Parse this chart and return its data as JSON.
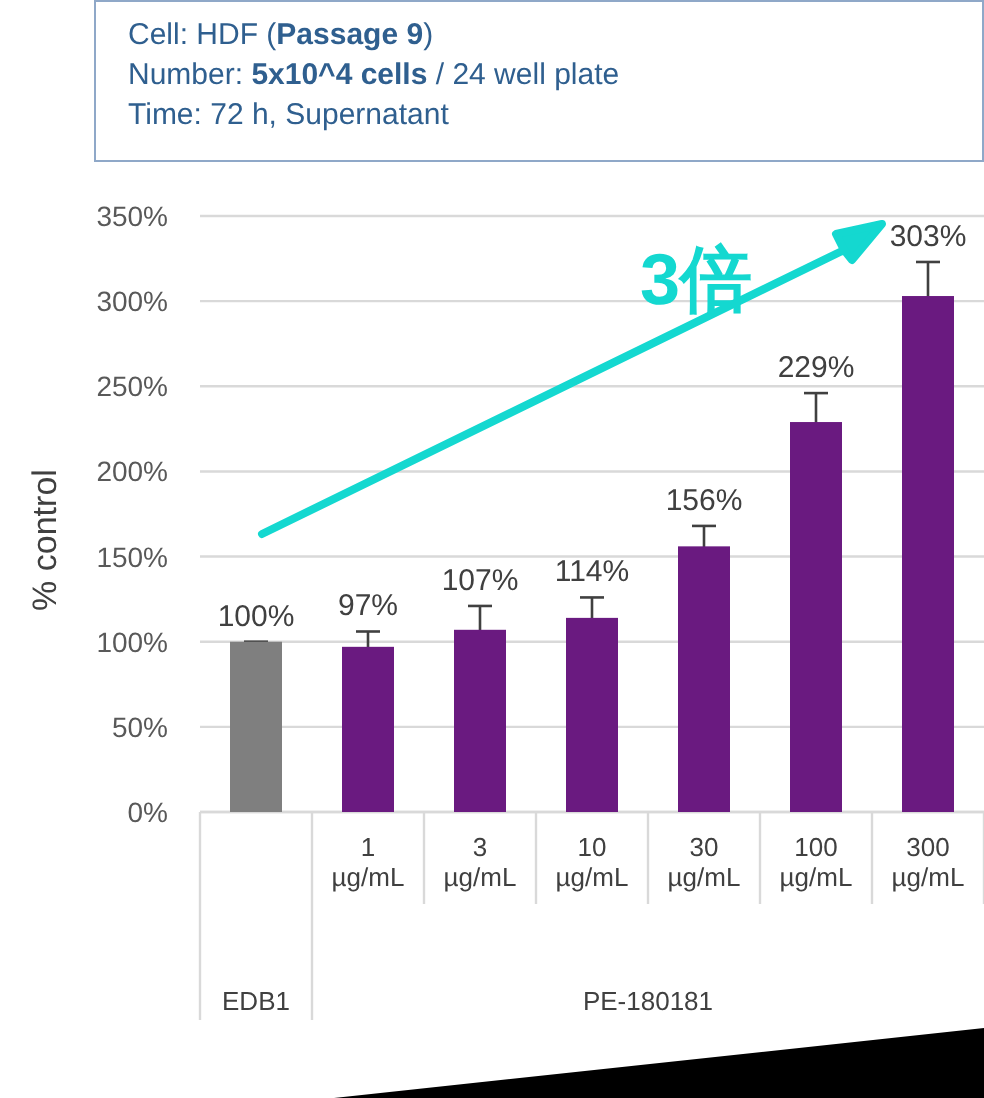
{
  "chart_data": {
    "type": "bar",
    "categories": [
      null,
      "1 µg/mL",
      "3 µg/mL",
      "10 µg/mL",
      "30 µg/mL",
      "100 µg/mL",
      "300 µg/mL"
    ],
    "values": [
      100,
      97,
      107,
      114,
      156,
      229,
      303
    ],
    "errors": [
      0,
      9,
      14,
      12,
      12,
      17,
      20
    ],
    "colors": [
      "#7f7f7f",
      "#6a1a80",
      "#6a1a80",
      "#6a1a80",
      "#6a1a80",
      "#6a1a80",
      "#6a1a80"
    ],
    "value_labels": [
      "100%",
      "97%",
      "107%",
      "114%",
      "156%",
      "229%",
      "303%"
    ],
    "ylabel": "% control",
    "ylim": [
      0,
      350
    ],
    "yticks": [
      {
        "value": 0,
        "label": "0%"
      },
      {
        "value": 50,
        "label": "50%"
      },
      {
        "value": 100,
        "label": "100%"
      },
      {
        "value": 150,
        "label": "150%"
      },
      {
        "value": 200,
        "label": "200%"
      },
      {
        "value": 250,
        "label": "250%"
      },
      {
        "value": 300,
        "label": "300%"
      },
      {
        "value": 350,
        "label": "350%"
      }
    ],
    "grid": "y",
    "annotations": [
      "Cell: HDF (**Passage 9**)",
      "Number: **5x10^4 cells** / 24 well plate",
      "Time: 72 h, Supernatant",
      "3倍",
      "PE-180181",
      "EDB1"
    ]
  }
}
